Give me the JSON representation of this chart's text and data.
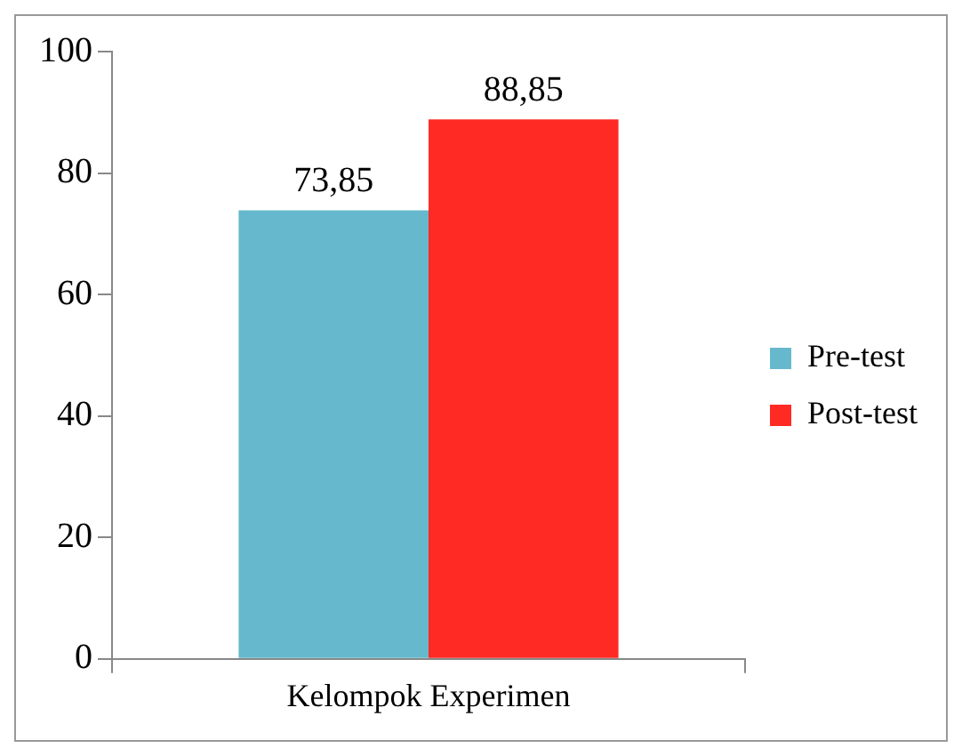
{
  "chart_data": {
    "type": "bar",
    "categories": [
      "Kelompok Experimen"
    ],
    "series": [
      {
        "name": "Pre-test",
        "color": "#66b8cc",
        "values": [
          73.85
        ],
        "value_labels": [
          "73,85"
        ]
      },
      {
        "name": "Post-test",
        "color": "#ff2a24",
        "values": [
          88.85
        ],
        "value_labels": [
          "88,85"
        ]
      }
    ],
    "ylim": [
      0,
      100
    ],
    "yticks": [
      0,
      20,
      40,
      60,
      80,
      100
    ],
    "grid": false,
    "legend": "right"
  }
}
